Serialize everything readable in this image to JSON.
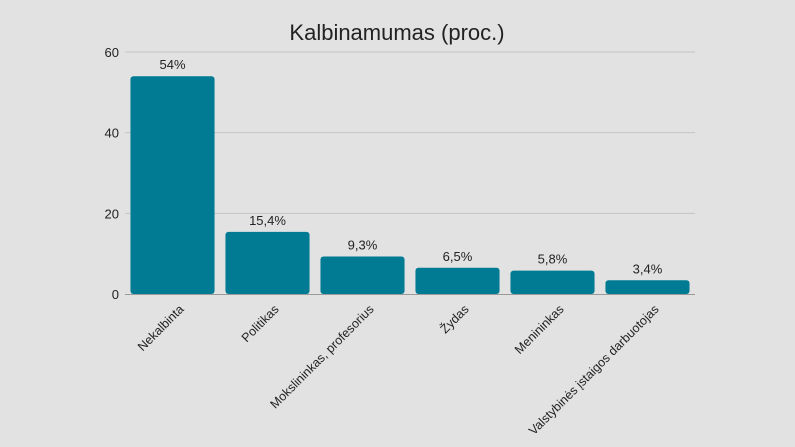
{
  "chart_data": {
    "type": "bar",
    "title": "Kalbinamumas (proc.)",
    "xlabel": "",
    "ylabel": "",
    "categories": [
      "Nekalbinta",
      "Politikas",
      "Mokslininkas, profesorius",
      "Žydas",
      "Menininkas",
      "Valstybinės įstaigos darbuotojas"
    ],
    "values": [
      54,
      15.4,
      9.3,
      6.5,
      5.8,
      3.4
    ],
    "data_labels": [
      "54%",
      "15,4%",
      "9,3%",
      "6,5%",
      "5,8%",
      "3,4%"
    ],
    "ylim": [
      0,
      60
    ],
    "yticks": [
      0,
      20,
      40,
      60
    ],
    "ytick_labels": [
      "0",
      "20",
      "40",
      "60"
    ],
    "grid": true,
    "legend": "none",
    "colors": {
      "bar": "#007b93",
      "background": "#e2e2e2",
      "grid": "#c4c4c4",
      "text": "#222222"
    }
  }
}
